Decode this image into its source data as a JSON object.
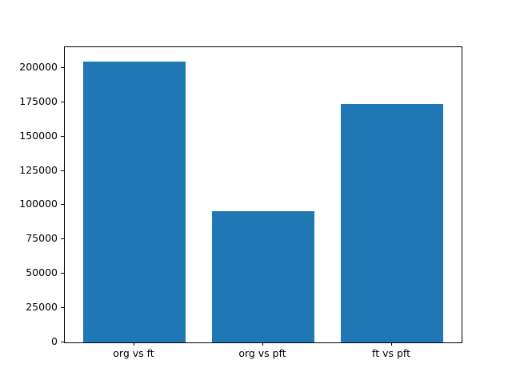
{
  "chart_data": {
    "type": "bar",
    "title": "",
    "xlabel": "",
    "ylabel": "",
    "categories": [
      "org vs ft",
      "org vs pft",
      "ft vs pft"
    ],
    "values": [
      204800,
      95300,
      173400
    ],
    "ylim": [
      0,
      215000
    ],
    "yticks": [
      0,
      25000,
      50000,
      75000,
      100000,
      125000,
      150000,
      175000,
      200000
    ],
    "ytick_labels": [
      "0",
      "25000",
      "50000",
      "75000",
      "100000",
      "125000",
      "150000",
      "175000",
      "200000"
    ],
    "bar_color": "#1f77b4",
    "axis_color": "#000000",
    "text_color": "#000000",
    "background_color": "#ffffff",
    "grid": false,
    "legend_position": "none"
  }
}
